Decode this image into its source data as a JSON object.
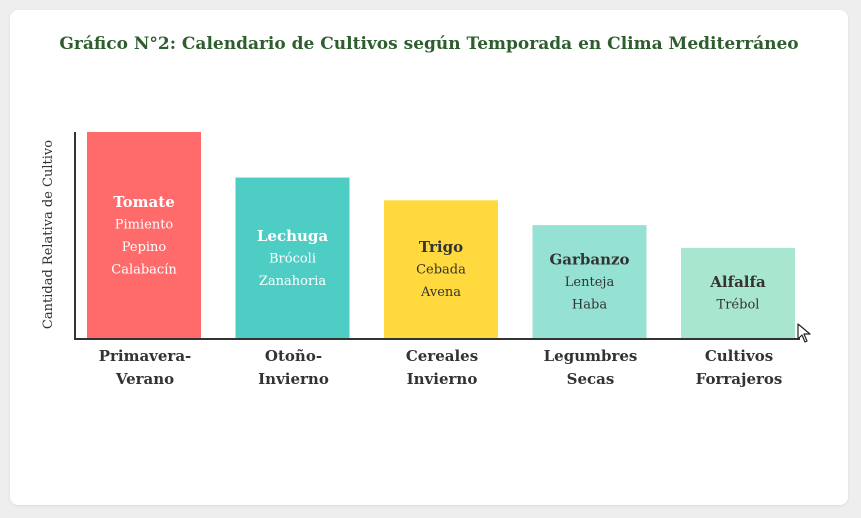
{
  "chart_data": {
    "type": "bar",
    "title": "Gráfico N°2: Calendario de Cultivos según Temporada en Clima Mediterráneo",
    "xlabel": "",
    "ylabel": "Cantidad Relativa de Cultivo",
    "ylim": [
      0,
      100
    ],
    "grid": false,
    "categories": [
      [
        "Primavera-",
        "Verano"
      ],
      [
        "Otoño-",
        "Invierno"
      ],
      [
        "Cereales",
        "Invierno"
      ],
      [
        "Legumbres",
        "Secas"
      ],
      [
        "Cultivos",
        "Forrajeros"
      ]
    ],
    "values": [
      100,
      78,
      67,
      55,
      44
    ],
    "bars": [
      {
        "color": "#ff6b6b",
        "text_color": "#ffffff",
        "crops": [
          "Tomate",
          "Pimiento",
          "Pepino",
          "Calabacín"
        ]
      },
      {
        "color": "#4ecdc4",
        "text_color": "#ffffff",
        "crops": [
          "Lechuga",
          "Brócoli",
          "Zanahoria"
        ]
      },
      {
        "color": "#ffd93d",
        "text_color": "#333333",
        "crops": [
          "Trigo",
          "Cebada",
          "Avena"
        ]
      },
      {
        "color": "#95e1d3",
        "text_color": "#333333",
        "crops": [
          "Garbanzo",
          "Lenteja",
          "Haba"
        ]
      },
      {
        "color": "#a8e6cf",
        "text_color": "#333333",
        "crops": [
          "Alfalfa",
          "Trébol"
        ]
      }
    ]
  },
  "colors": {
    "title": "#2e5e2e",
    "axis": "#333333",
    "label": "#333333"
  }
}
